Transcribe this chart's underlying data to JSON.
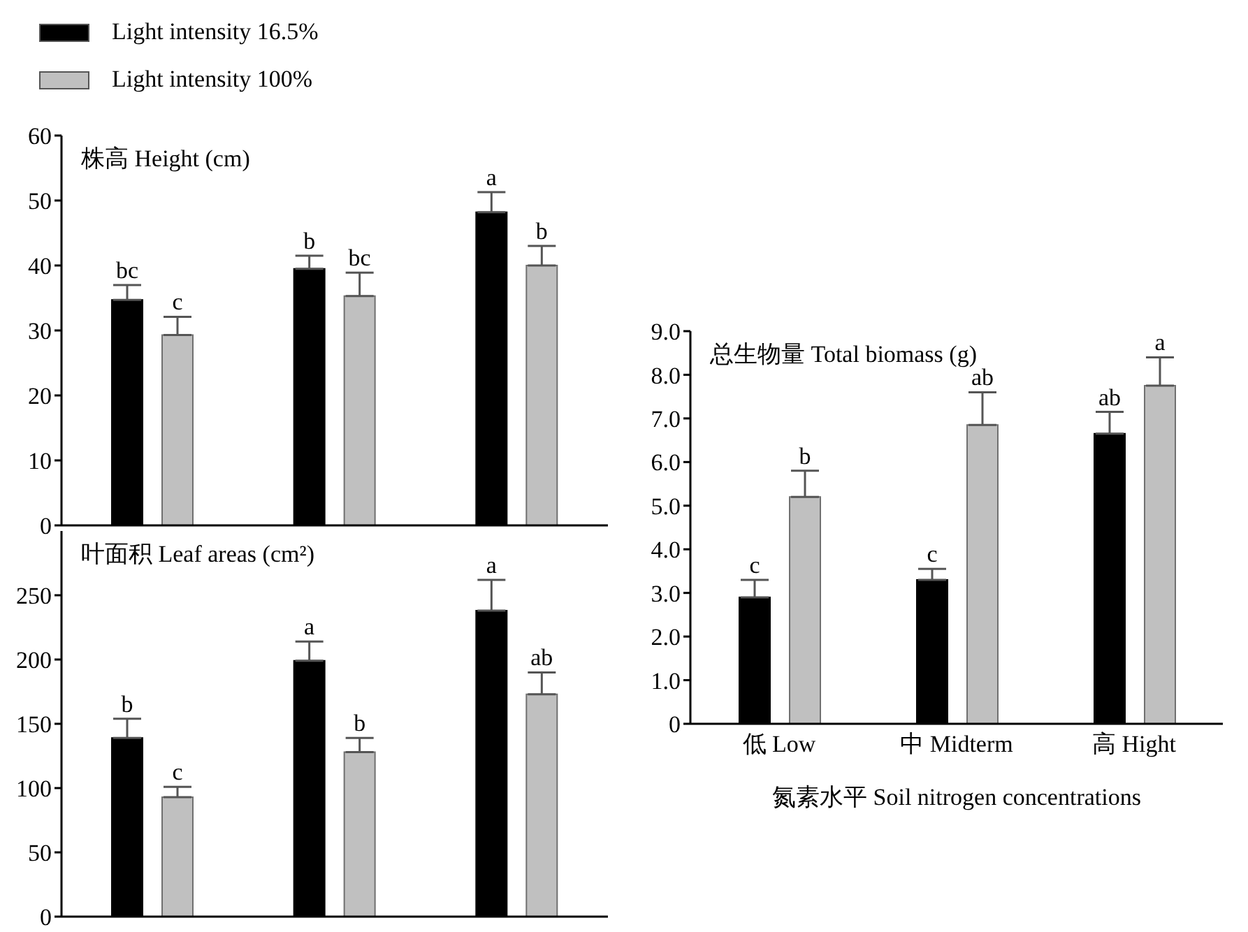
{
  "chart_data": [
    {
      "type": "bar",
      "title": "株高 Height (cm)",
      "categories": [
        null,
        null,
        null
      ],
      "legend": "top left",
      "tick_labels": "y",
      "ylim": [
        0,
        60
      ],
      "yticks": [
        0,
        10,
        20,
        30,
        40,
        50,
        60
      ],
      "series": [
        {
          "name": "Light intensity 16.5%",
          "color": "#000000",
          "values": [
            34.7,
            39.5,
            48.2
          ],
          "errors": [
            2.3,
            2.0,
            3.1
          ],
          "value_labels": [
            "bc",
            "b",
            "a"
          ]
        },
        {
          "name": "Light intensity 100%",
          "color": "#c0c0c0",
          "values": [
            29.3,
            35.3,
            40.0
          ],
          "errors": [
            2.8,
            3.6,
            3.0
          ],
          "value_labels": [
            "c",
            "bc",
            "b"
          ]
        }
      ]
    },
    {
      "type": "bar",
      "title": "叶面积 Leaf areas (cm²)",
      "categories": [
        null,
        null,
        null
      ],
      "tick_labels": "y",
      "ylim": [
        0,
        300
      ],
      "yticks": [
        0,
        50,
        100,
        150,
        200,
        250
      ],
      "series": [
        {
          "color": "#000000",
          "values": [
            139,
            199,
            238
          ],
          "errors": [
            15,
            15,
            24
          ],
          "value_labels": [
            "b",
            "a",
            "a"
          ]
        },
        {
          "color": "#c0c0c0",
          "values": [
            93,
            128,
            173
          ],
          "errors": [
            8,
            11,
            17
          ],
          "value_labels": [
            "c",
            "b",
            "ab"
          ]
        }
      ]
    },
    {
      "type": "bar",
      "title": "总生物量 Total biomass (g)",
      "xlabel": "氮素水平 Soil nitrogen concentrations",
      "categories": [
        "低 Low",
        "中 Midterm",
        "高 Hight"
      ],
      "ylim": [
        0,
        9
      ],
      "yticks": [
        0,
        {
          "value": 1,
          "label": "1.0"
        },
        {
          "value": 2,
          "label": "2.0"
        },
        {
          "value": 3,
          "label": "3.0"
        },
        {
          "value": 4,
          "label": "4.0"
        },
        {
          "value": 5,
          "label": "5.0"
        },
        {
          "value": 6,
          "label": "6.0"
        },
        {
          "value": 7,
          "label": "7.0"
        },
        {
          "value": 8,
          "label": "8.0"
        },
        {
          "value": 9,
          "label": "9.0"
        }
      ],
      "series": [
        {
          "color": "#000000",
          "values": [
            2.9,
            3.3,
            6.65
          ],
          "errors": [
            0.4,
            0.25,
            0.5
          ],
          "value_labels": [
            "c",
            "c",
            "ab"
          ]
        },
        {
          "color": "#c0c0c0",
          "values": [
            5.2,
            6.85,
            7.75
          ],
          "errors": [
            0.6,
            0.75,
            0.65
          ],
          "value_labels": [
            "b",
            "ab",
            "a"
          ]
        }
      ]
    }
  ]
}
